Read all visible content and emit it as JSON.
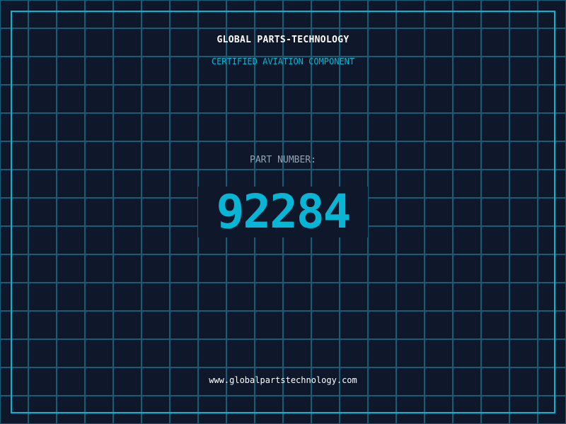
{
  "header": {
    "title": "GLOBAL PARTS-TECHNOLOGY",
    "subtitle": "CERTIFIED AVIATION COMPONENT"
  },
  "part": {
    "label": "PART NUMBER:",
    "number": "92284"
  },
  "footer": {
    "url": "www.globalpartstechnology.com"
  },
  "colors": {
    "background": "#0f172a",
    "grid": "#155e75",
    "accent": "#06b6d4"
  }
}
